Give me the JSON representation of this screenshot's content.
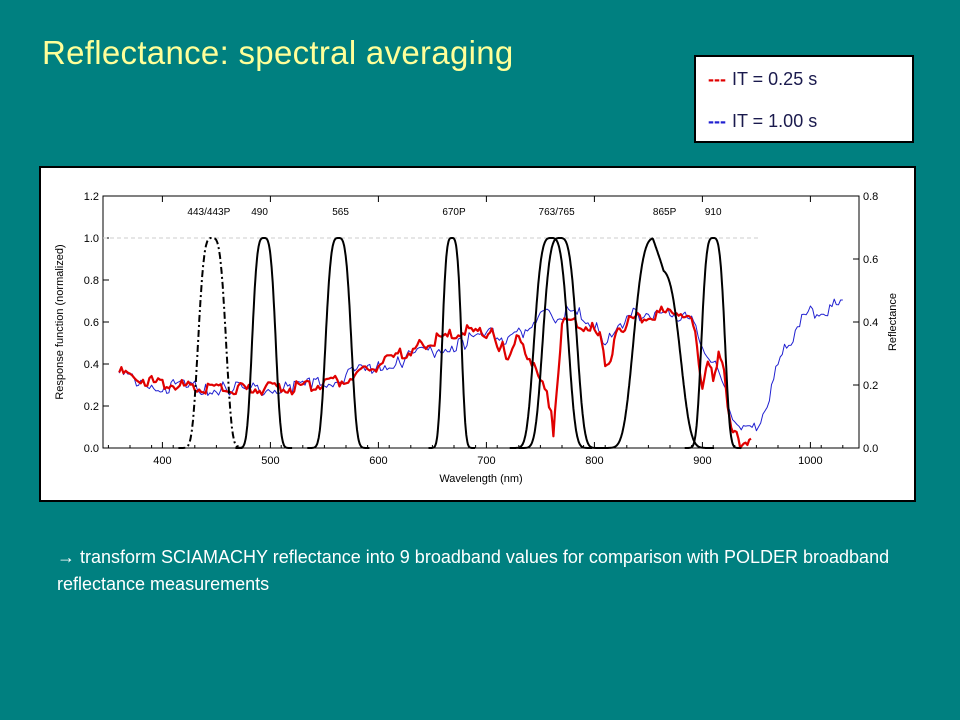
{
  "slide": {
    "title": "Reflectance: spectral averaging",
    "legend": [
      {
        "dash": "---",
        "label": "IT = 0.25 s",
        "color": "#E00000"
      },
      {
        "dash": "---",
        "label": "IT = 1.00 s",
        "color": "#2020D0"
      }
    ],
    "caption_arrow": "→",
    "caption": "transform SCIAMACHY reflectance into 9 broadband values for comparison with POLDER broadband reflectance measurements"
  },
  "chart_data": {
    "type": "line",
    "xlabel": "Wavelength (nm)",
    "ylabel_left": "Response function (normalized)",
    "ylabel_right": "Reflectance",
    "xlim": [
      345,
      1045
    ],
    "ylim_left": [
      0,
      1.2
    ],
    "ylim_right": [
      0,
      0.8
    ],
    "x_ticks": [
      400,
      500,
      600,
      700,
      800,
      900,
      1000
    ],
    "y_ticks_left": [
      "0.0",
      "0.2",
      "0.4",
      "0.6",
      "0.8",
      "1.0",
      "1.2"
    ],
    "y_ticks_right": [
      "0.0",
      "0.2",
      "0.4",
      "0.6",
      "0.8"
    ],
    "grid": false,
    "band_labels": [
      {
        "text": "443/443P",
        "x": 443
      },
      {
        "text": "490",
        "x": 490
      },
      {
        "text": "565",
        "x": 565
      },
      {
        "text": "670P",
        "x": 670
      },
      {
        "text": "763/765",
        "x": 765
      },
      {
        "text": "865P",
        "x": 865
      },
      {
        "text": "910",
        "x": 910
      }
    ],
    "response_bands": [
      {
        "name": "443/443P",
        "center": 446,
        "halfwidth": 13,
        "style": "dashdot",
        "color": "#000000"
      },
      {
        "name": "490",
        "center": 494,
        "halfwidth": 11,
        "style": "solid",
        "color": "#000000"
      },
      {
        "name": "565",
        "center": 563,
        "halfwidth": 12,
        "style": "solid",
        "color": "#000000"
      },
      {
        "name": "670P",
        "center": 668,
        "halfwidth": 9,
        "style": "solid",
        "color": "#000000"
      },
      {
        "name": "763",
        "center": 760,
        "halfwidth": 16,
        "style": "solid",
        "color": "#000000"
      },
      {
        "name": "765",
        "center": 768,
        "halfwidth": 16,
        "style": "solid",
        "color": "#000000"
      },
      {
        "name": "865P",
        "center": 858,
        "halfwidth": 22,
        "style": "solid",
        "color": "#000000"
      },
      {
        "name": "910",
        "center": 910,
        "halfwidth": 11,
        "style": "solid",
        "color": "#000000"
      }
    ],
    "reflectance_blue": {
      "name": "IT = 1.00 s",
      "color": "#2020D0",
      "x": [
        360,
        380,
        400,
        420,
        440,
        460,
        480,
        500,
        520,
        540,
        560,
        580,
        600,
        620,
        640,
        660,
        680,
        700,
        710,
        720,
        730,
        740,
        750,
        760,
        770,
        780,
        790,
        800,
        810,
        820,
        830,
        840,
        850,
        860,
        870,
        880,
        890,
        900,
        910,
        920,
        930,
        940,
        950,
        960,
        970,
        980,
        990,
        1000,
        1010,
        1020,
        1030
      ],
      "y": [
        0.25,
        0.22,
        0.21,
        0.205,
        0.2,
        0.198,
        0.196,
        0.2,
        0.205,
        0.215,
        0.23,
        0.25,
        0.27,
        0.29,
        0.31,
        0.33,
        0.35,
        0.37,
        0.38,
        0.35,
        0.37,
        0.41,
        0.43,
        0.43,
        0.44,
        0.44,
        0.43,
        0.4,
        0.33,
        0.4,
        0.42,
        0.44,
        0.44,
        0.44,
        0.44,
        0.435,
        0.41,
        0.35,
        0.28,
        0.2,
        0.1,
        0.06,
        0.08,
        0.16,
        0.27,
        0.35,
        0.41,
        0.44,
        0.45,
        0.46,
        0.47
      ]
    },
    "reflectance_red": {
      "name": "IT = 0.25 s",
      "color": "#E00000",
      "x": [
        360,
        370,
        380,
        390,
        400,
        410,
        420,
        430,
        440,
        450,
        460,
        470,
        480,
        490,
        500,
        510,
        520,
        530,
        540,
        550,
        560,
        570,
        580,
        640,
        650,
        660,
        670,
        680,
        690,
        700,
        705,
        710,
        715,
        720,
        730,
        760,
        762,
        765,
        770,
        780,
        800,
        805,
        810,
        815,
        820,
        825,
        830,
        840,
        850,
        860,
        870,
        880,
        890,
        895,
        900,
        905,
        910,
        915,
        920,
        925,
        930,
        935,
        940,
        945
      ],
      "y": [
        0.25,
        0.24,
        0.23,
        0.22,
        0.215,
        0.21,
        0.205,
        0.2,
        0.2,
        0.198,
        0.197,
        0.196,
        0.197,
        0.198,
        0.2,
        0.2,
        0.2,
        0.205,
        0.21,
        0.215,
        0.22,
        0.23,
        0.24,
        0.34,
        0.35,
        0.36,
        0.37,
        0.38,
        0.38,
        0.37,
        0.38,
        0.33,
        0.35,
        0.29,
        0.37,
        0.14,
        0.03,
        0.2,
        0.4,
        0.41,
        0.39,
        0.36,
        0.28,
        0.3,
        0.37,
        0.39,
        0.41,
        0.42,
        0.43,
        0.44,
        0.44,
        0.44,
        0.41,
        0.34,
        0.2,
        0.28,
        0.23,
        0.3,
        0.25,
        0.11,
        0.06,
        0.02,
        0.04,
        0.03
      ]
    }
  }
}
